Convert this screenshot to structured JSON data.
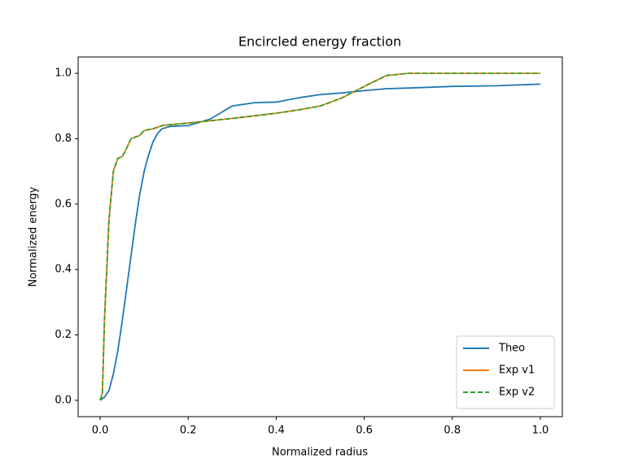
{
  "chart_data": {
    "type": "line",
    "title": "Encircled energy fraction",
    "x_label": "Normalized radius",
    "y_label": "Normalized energy",
    "x": [
      0,
      0.005,
      0.01,
      0.02,
      0.03,
      0.04,
      0.05,
      0.06,
      0.07,
      0.08,
      0.09,
      0.1,
      0.11,
      0.12,
      0.13,
      0.14,
      0.16,
      0.2,
      0.25,
      0.3,
      0.35,
      0.4,
      0.45,
      0.5,
      0.55,
      0.6,
      0.65,
      0.7,
      0.8,
      0.9,
      1.0
    ],
    "series": [
      {
        "name": "Theo",
        "color": "#1f77b4",
        "dash": "solid",
        "values": [
          0,
          0.005,
          0.01,
          0.03,
          0.08,
          0.15,
          0.24,
          0.34,
          0.44,
          0.54,
          0.63,
          0.7,
          0.75,
          0.79,
          0.815,
          0.83,
          0.838,
          0.84,
          0.86,
          0.9,
          0.91,
          0.912,
          0.925,
          0.935,
          0.94,
          0.947,
          0.953,
          0.955,
          0.96,
          0.962,
          0.967
        ]
      },
      {
        "name": "Exp v1",
        "color": "#ff7f0e",
        "dash": "solid",
        "values": [
          0,
          0.02,
          0.25,
          0.55,
          0.7,
          0.74,
          0.745,
          0.77,
          0.8,
          0.805,
          0.81,
          0.825,
          0.828,
          0.83,
          0.835,
          0.84,
          0.843,
          0.848,
          0.855,
          0.862,
          0.87,
          0.878,
          0.888,
          0.9,
          0.925,
          0.96,
          0.993,
          1.0,
          1.0,
          1.0,
          1.0
        ]
      },
      {
        "name": "Exp v2",
        "color": "#2ca02c",
        "dash": "dashed",
        "values": [
          0,
          0.02,
          0.25,
          0.55,
          0.7,
          0.74,
          0.745,
          0.77,
          0.8,
          0.805,
          0.81,
          0.825,
          0.828,
          0.83,
          0.835,
          0.84,
          0.843,
          0.848,
          0.855,
          0.862,
          0.87,
          0.878,
          0.888,
          0.9,
          0.925,
          0.96,
          0.993,
          1.0,
          1.0,
          1.0,
          1.0
        ]
      }
    ],
    "xlim": [
      -0.05,
      1.05
    ],
    "ylim": [
      -0.05,
      1.05
    ],
    "xticks": [
      {
        "value": 0,
        "label": "0.0"
      },
      {
        "value": 0.2,
        "label": "0.2"
      },
      {
        "value": 0.4,
        "label": "0.4"
      },
      {
        "value": 0.6,
        "label": "0.6"
      },
      {
        "value": 0.8,
        "label": "0.8"
      },
      {
        "value": 1.0,
        "label": "1.0"
      }
    ],
    "yticks": [
      {
        "value": 0,
        "label": "0.0"
      },
      {
        "value": 0.2,
        "label": "0.2"
      },
      {
        "value": 0.4,
        "label": "0.4"
      },
      {
        "value": 0.6,
        "label": "0.6"
      },
      {
        "value": 0.8,
        "label": "0.8"
      },
      {
        "value": 1.0,
        "label": "1.0"
      }
    ],
    "grid": false,
    "legend": "lower right"
  }
}
